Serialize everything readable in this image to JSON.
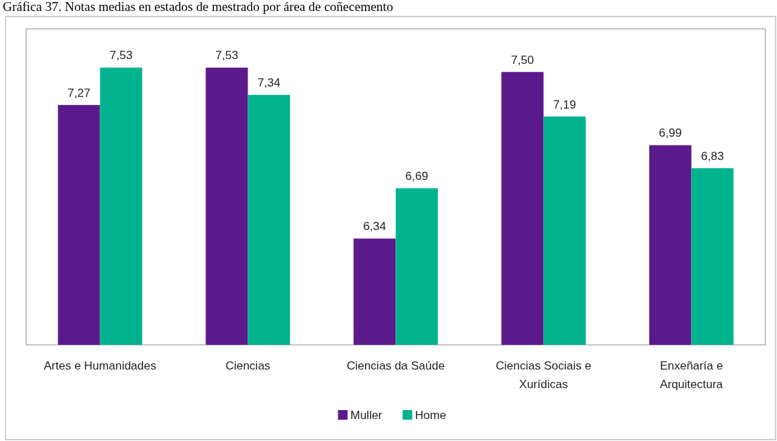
{
  "chart_data": {
    "type": "bar",
    "title": "Gráfica 37. Notas medias en estados de mestrado por área de coñecemento",
    "categories": [
      "Artes e Humanidades",
      "Ciencias",
      "Ciencias da Saúde",
      "Ciencias Sociais e Xurídicas",
      "Enxeñaría e Arquitectura"
    ],
    "series": [
      {
        "name": "Muller",
        "color": "#5b1a8b",
        "values": [
          7.27,
          7.53,
          6.34,
          7.5,
          6.99
        ],
        "value_labels": [
          "7,27",
          "7,53",
          "6,34",
          "7,50",
          "6,99"
        ]
      },
      {
        "name": "Home",
        "color": "#00b38e",
        "values": [
          7.53,
          7.34,
          6.69,
          7.19,
          6.83
        ],
        "value_labels": [
          "7,53",
          "7,34",
          "6,69",
          "7,19",
          "6,83"
        ]
      }
    ],
    "ylim": [
      5.6,
      7.8
    ],
    "tick_labels": "x",
    "legend": "bottom"
  }
}
